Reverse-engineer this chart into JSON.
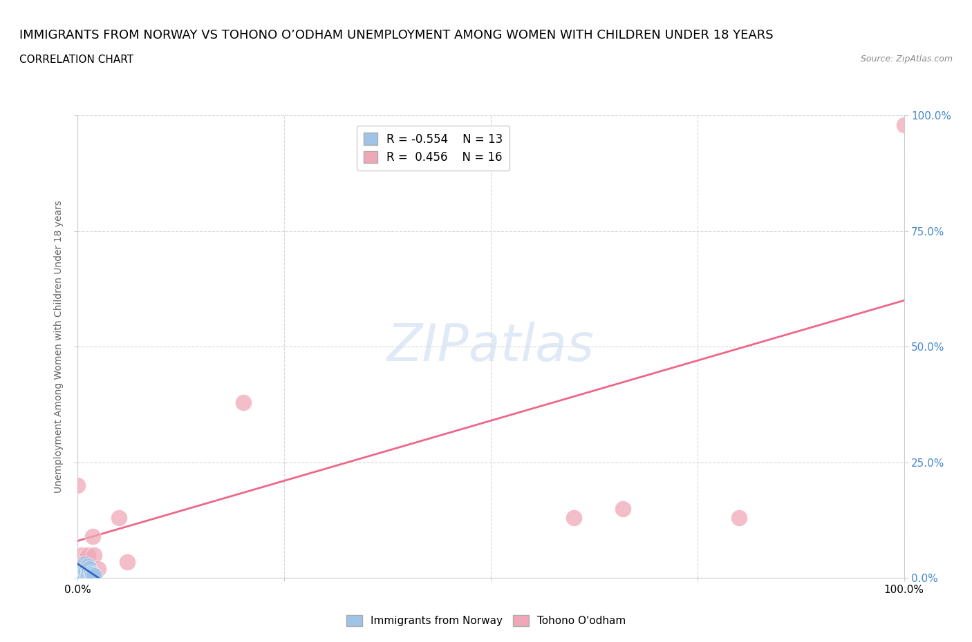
{
  "title": "IMMIGRANTS FROM NORWAY VS TOHONO O’ODHAM UNEMPLOYMENT AMONG WOMEN WITH CHILDREN UNDER 18 YEARS",
  "subtitle": "CORRELATION CHART",
  "source": "Source: ZipAtlas.com",
  "ylabel": "Unemployment Among Women with Children Under 18 years",
  "xlim": [
    0.0,
    1.0
  ],
  "ylim": [
    0.0,
    1.0
  ],
  "ytick_values": [
    0.0,
    0.25,
    0.5,
    0.75,
    1.0
  ],
  "xtick_values": [
    0.0,
    0.25,
    0.5,
    0.75,
    1.0
  ],
  "grid_color": "#d8d8d8",
  "blue_scatter_x": [
    0.005,
    0.005,
    0.007,
    0.008,
    0.01,
    0.01,
    0.012,
    0.012,
    0.013,
    0.014,
    0.016,
    0.018,
    0.02
  ],
  "blue_scatter_y": [
    0.005,
    0.01,
    0.02,
    0.03,
    0.005,
    0.015,
    0.005,
    0.025,
    0.01,
    0.02,
    0.01,
    0.008,
    0.005
  ],
  "pink_scatter_x": [
    0.0,
    0.002,
    0.005,
    0.01,
    0.012,
    0.015,
    0.018,
    0.02,
    0.025,
    0.05,
    0.06,
    0.2,
    0.6,
    0.66,
    0.8,
    1.0
  ],
  "pink_scatter_y": [
    0.2,
    0.02,
    0.05,
    0.02,
    0.05,
    0.02,
    0.09,
    0.05,
    0.02,
    0.13,
    0.035,
    0.38,
    0.13,
    0.15,
    0.13,
    0.98
  ],
  "blue_line_x": [
    0.0,
    0.025
  ],
  "blue_line_y": [
    0.03,
    0.0
  ],
  "pink_line_x": [
    0.0,
    1.0
  ],
  "pink_line_y": [
    0.08,
    0.6
  ],
  "blue_color": "#a0c4e8",
  "pink_color": "#f0a8b8",
  "blue_line_color": "#3366bb",
  "pink_line_color": "#ee6688",
  "legend_blue_r": -0.554,
  "legend_blue_n": 13,
  "legend_pink_r": 0.456,
  "legend_pink_n": 16,
  "marker_size": 300,
  "title_fontsize": 13,
  "subtitle_fontsize": 11,
  "axis_label_fontsize": 10,
  "tick_fontsize": 11
}
